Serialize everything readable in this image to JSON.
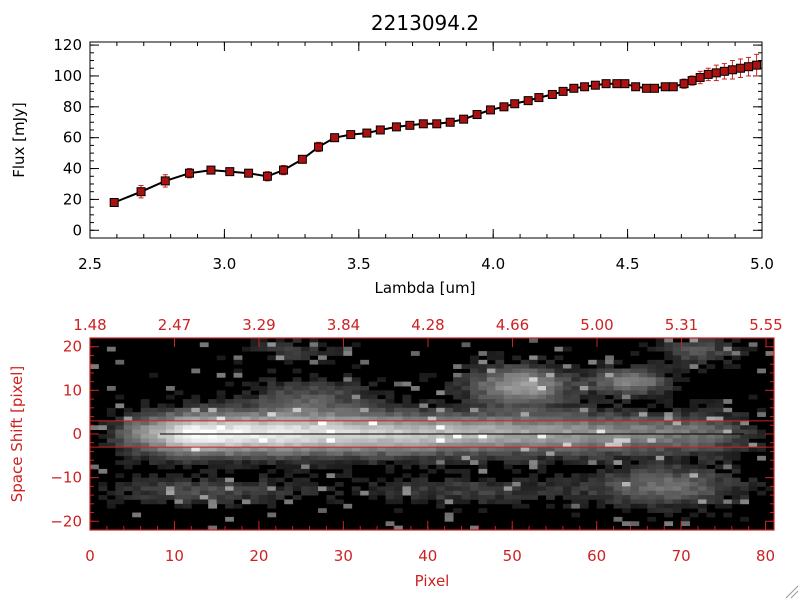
{
  "colors": {
    "axis_black": "#000000",
    "accent_red": "#cc2222",
    "marker_red": "#aa1111",
    "image_bg": "#000000"
  },
  "chart_data": [
    {
      "type": "line",
      "title": "2213094.2",
      "xlabel": "Lambda [um]",
      "ylabel": "Flux [mJy]",
      "xlim": [
        2.5,
        5.0
      ],
      "ylim": [
        -5,
        122
      ],
      "xticks": [
        2.5,
        3.0,
        3.5,
        4.0,
        4.5,
        5.0
      ],
      "xtick_labels": [
        "2.5",
        "3.0",
        "3.5",
        "4.0",
        "4.5",
        "5.0"
      ],
      "yticks": [
        0,
        20,
        40,
        60,
        80,
        100,
        120
      ],
      "ytick_labels": [
        "0",
        "20",
        "40",
        "60",
        "80",
        "100",
        "120"
      ],
      "series": [
        {
          "name": "flux",
          "x": [
            2.59,
            2.69,
            2.78,
            2.87,
            2.95,
            3.02,
            3.09,
            3.16,
            3.22,
            3.29,
            3.35,
            3.41,
            3.47,
            3.53,
            3.58,
            3.64,
            3.69,
            3.74,
            3.79,
            3.84,
            3.89,
            3.94,
            3.99,
            4.04,
            4.08,
            4.13,
            4.17,
            4.22,
            4.26,
            4.3,
            4.34,
            4.38,
            4.42,
            4.46,
            4.49,
            4.53,
            4.57,
            4.6,
            4.64,
            4.67,
            4.71,
            4.74,
            4.77,
            4.8,
            4.83,
            4.86,
            4.89,
            4.92,
            4.95,
            4.98
          ],
          "y": [
            18,
            25,
            32,
            37,
            39,
            38,
            37,
            35,
            39,
            46,
            54,
            60,
            62,
            63,
            65,
            67,
            68,
            69,
            69,
            70,
            72,
            75,
            78,
            80,
            82,
            84,
            86,
            88,
            90,
            92,
            93,
            94,
            95,
            95,
            95,
            93,
            92,
            92,
            93,
            93,
            95,
            97,
            99,
            101,
            102,
            103,
            104,
            105,
            106,
            107
          ],
          "err": [
            2,
            4,
            4,
            3,
            2,
            2,
            2,
            3,
            3,
            2,
            3,
            2,
            2,
            2,
            1,
            1,
            1,
            1,
            1,
            1,
            1,
            1,
            1,
            1,
            1,
            1,
            1,
            1,
            1,
            1,
            1,
            1,
            1,
            1,
            1,
            1,
            1,
            1,
            1,
            2,
            3,
            3,
            4,
            4,
            5,
            5,
            6,
            6,
            6,
            7
          ]
        }
      ]
    },
    {
      "type": "heatmap",
      "xlabel": "Pixel",
      "ylabel": "Space Shift [pixel]",
      "xlim": [
        0,
        81
      ],
      "ylim": [
        -22,
        22
      ],
      "xticks": [
        0,
        10,
        20,
        30,
        40,
        50,
        60,
        70,
        80
      ],
      "xtick_labels": [
        "0",
        "10",
        "20",
        "30",
        "40",
        "50",
        "60",
        "70",
        "80"
      ],
      "yticks": [
        -20,
        -10,
        0,
        10,
        20
      ],
      "ytick_labels": [
        "−20",
        "−10",
        "0",
        "10",
        "20"
      ],
      "top_tick_labels": [
        "1.48",
        "2.47",
        "3.29",
        "3.84",
        "4.28",
        "4.66",
        "5.00",
        "5.31",
        "5.55"
      ],
      "aperture_lines": [
        3,
        -3
      ],
      "center_line": 0,
      "trace": {
        "x_start": 3,
        "x_end": 78,
        "peak_x": 12,
        "width_sigma": 3.2,
        "secondary_blobs": [
          {
            "x": 51,
            "y": 11,
            "amp": 0.55,
            "sx": 4,
            "sy": 3
          },
          {
            "x": 64,
            "y": 12,
            "amp": 0.45,
            "sx": 3,
            "sy": 2
          },
          {
            "x": 26,
            "y": 8,
            "amp": 0.25,
            "sx": 5,
            "sy": 3
          },
          {
            "x": 68,
            "y": -12,
            "amp": 0.35,
            "sx": 6,
            "sy": 3
          },
          {
            "x": 14,
            "y": -13,
            "amp": 0.22,
            "sx": 8,
            "sy": 2
          },
          {
            "x": 45,
            "y": -13,
            "amp": 0.18,
            "sx": 8,
            "sy": 2
          },
          {
            "x": 24,
            "y": 19,
            "amp": 0.15,
            "sx": 3,
            "sy": 2
          },
          {
            "x": 72,
            "y": 19,
            "amp": 0.25,
            "sx": 3,
            "sy": 2
          }
        ]
      }
    }
  ]
}
